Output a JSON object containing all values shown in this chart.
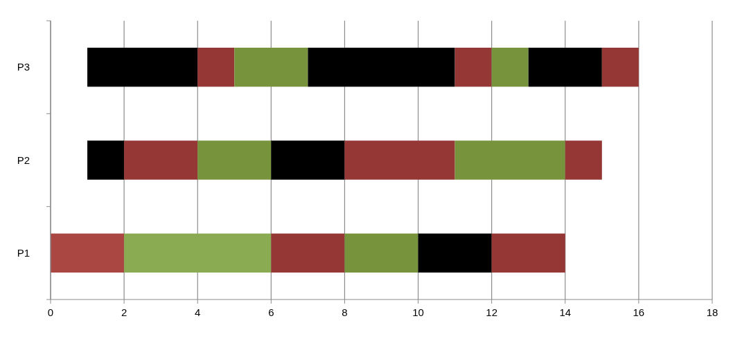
{
  "chart_data": {
    "type": "bar",
    "orientation": "horizontal",
    "categories": [
      "P3",
      "P2",
      "P1"
    ],
    "series": [
      {
        "base": [
          1,
          1,
          0
        ],
        "values": [
          3,
          1,
          2
        ],
        "colors": [
          "#000000",
          "#000000",
          "#ab4742"
        ]
      },
      {
        "base": [
          4,
          2,
          2
        ],
        "values": [
          1,
          2,
          4
        ],
        "colors": [
          "#953735",
          "#953735",
          "#8aab52"
        ]
      },
      {
        "base": [
          5,
          4,
          6
        ],
        "values": [
          2,
          2,
          2
        ],
        "colors": [
          "#77933c",
          "#77933c",
          "#953735"
        ]
      },
      {
        "base": [
          7,
          6,
          8
        ],
        "values": [
          4,
          2,
          2
        ],
        "colors": [
          "#000000",
          "#000000",
          "#77933c"
        ]
      },
      {
        "base": [
          11,
          8,
          10
        ],
        "values": [
          1,
          3,
          2
        ],
        "colors": [
          "#953735",
          "#953735",
          "#000000"
        ]
      },
      {
        "base": [
          12,
          11,
          12
        ],
        "values": [
          1,
          3,
          2
        ],
        "colors": [
          "#77933c",
          "#77933c",
          "#953735"
        ]
      },
      {
        "base": [
          13,
          14,
          null
        ],
        "values": [
          2,
          1,
          null
        ],
        "colors": [
          "#000000",
          "#953735",
          null
        ]
      },
      {
        "base": [
          15,
          null,
          null
        ],
        "values": [
          1,
          null,
          null
        ],
        "colors": [
          "#953735",
          null,
          null
        ]
      }
    ],
    "xlim": [
      0,
      18
    ],
    "xticks": [
      0,
      2,
      4,
      6,
      8,
      10,
      12,
      14,
      16,
      18
    ],
    "grid": "x"
  }
}
